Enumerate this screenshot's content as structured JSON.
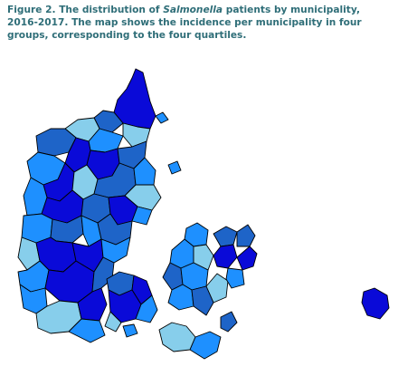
{
  "figure": {
    "label": "Figure 2.",
    "title_pre": " The distribution of ",
    "title_italic": "Salmonella",
    "title_post": " patients by municipality, 2016-2017.  The map shows the incidence per municipality in four groups, corresponding to the four quartiles."
  },
  "legend_colors": {
    "quartile_1": "#87ceeb",
    "quartile_2": "#1e90ff",
    "quartile_3": "#1e64c8",
    "quartile_4": "#0a0ad8"
  }
}
